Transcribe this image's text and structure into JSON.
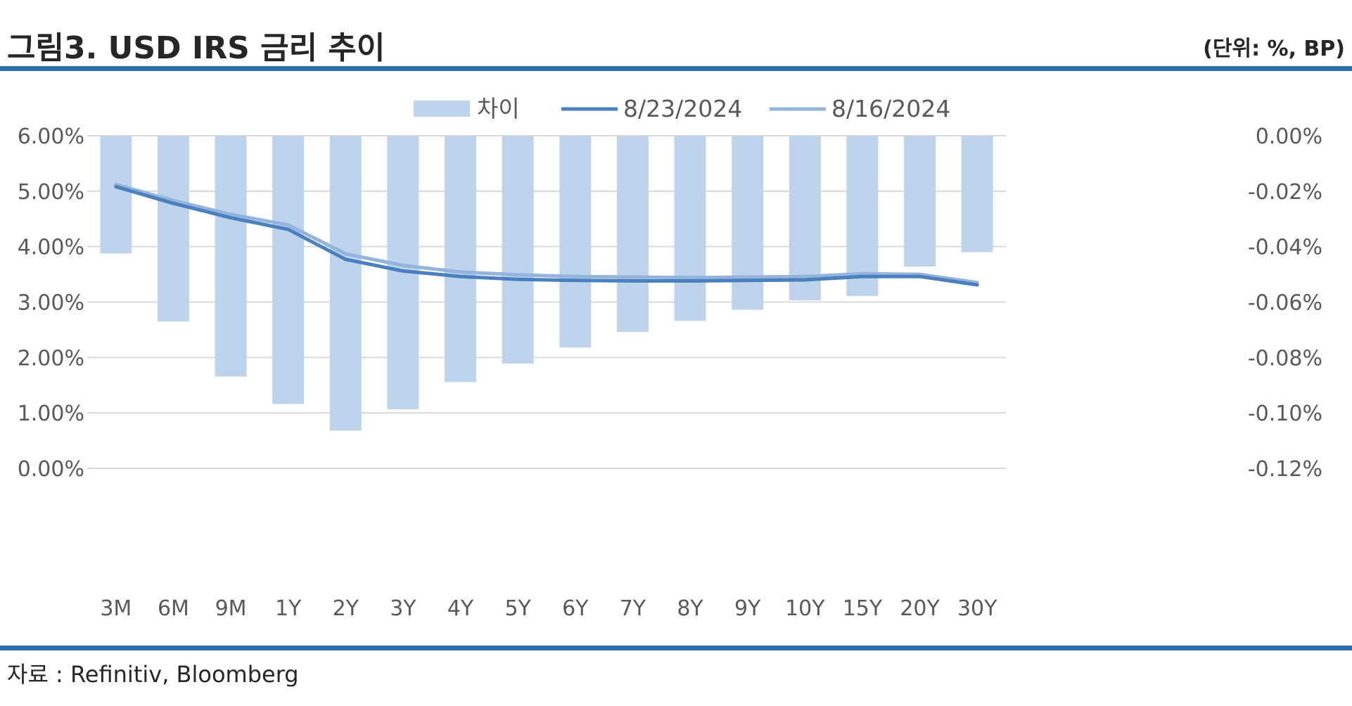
{
  "header": {
    "title": "그림3. USD IRS 금리 추이",
    "unit": "(단위: %, BP)"
  },
  "footer": {
    "source": "자료 : Refinitiv, Bloomberg"
  },
  "colors": {
    "rule": "#2E6DB0",
    "bar": "#BED3EC",
    "line_current": "#4A80BD",
    "line_previous": "#93B5DD",
    "grid": "#D9D9D9",
    "tick_text": "#595959"
  },
  "chart_data": {
    "type": "bar+line",
    "categories": [
      "3M",
      "6M",
      "9M",
      "1Y",
      "2Y",
      "3Y",
      "4Y",
      "5Y",
      "6Y",
      "7Y",
      "8Y",
      "9Y",
      "10Y",
      "15Y",
      "20Y",
      "30Y"
    ],
    "series": [
      {
        "name": "차이",
        "type": "bar",
        "axis": "right",
        "values": [
          -0.0425,
          -0.067,
          -0.0869,
          -0.0968,
          -0.1064,
          -0.0987,
          -0.0889,
          -0.0822,
          -0.0764,
          -0.0708,
          -0.0668,
          -0.0628,
          -0.0594,
          -0.0578,
          -0.0472,
          -0.042
        ]
      },
      {
        "name": "8/23/2024",
        "type": "line",
        "axis": "left",
        "values": [
          5.08,
          4.78,
          4.52,
          4.31,
          3.77,
          3.56,
          3.46,
          3.41,
          3.39,
          3.38,
          3.38,
          3.39,
          3.4,
          3.46,
          3.46,
          3.31
        ]
      },
      {
        "name": "8/16/2024",
        "type": "line",
        "axis": "left",
        "values": [
          5.12,
          4.83,
          4.58,
          4.39,
          3.87,
          3.66,
          3.54,
          3.49,
          3.46,
          3.45,
          3.44,
          3.45,
          3.46,
          3.51,
          3.5,
          3.35
        ]
      }
    ],
    "left_axis": {
      "ylim": [
        0,
        6
      ],
      "ticks": [
        0,
        1,
        2,
        3,
        4,
        5,
        6
      ],
      "tick_labels": [
        "0.00%",
        "1.00%",
        "2.00%",
        "3.00%",
        "4.00%",
        "5.00%",
        "6.00%"
      ]
    },
    "right_axis": {
      "ylim": [
        -0.12,
        0
      ],
      "ticks": [
        -0.12,
        -0.1,
        -0.08,
        -0.06,
        -0.04,
        -0.02,
        0
      ],
      "tick_labels": [
        "-0.12%",
        "-0.10%",
        "-0.08%",
        "-0.06%",
        "-0.04%",
        "-0.02%",
        "0.00%"
      ]
    },
    "grid": true,
    "legend_position": "top-center"
  }
}
